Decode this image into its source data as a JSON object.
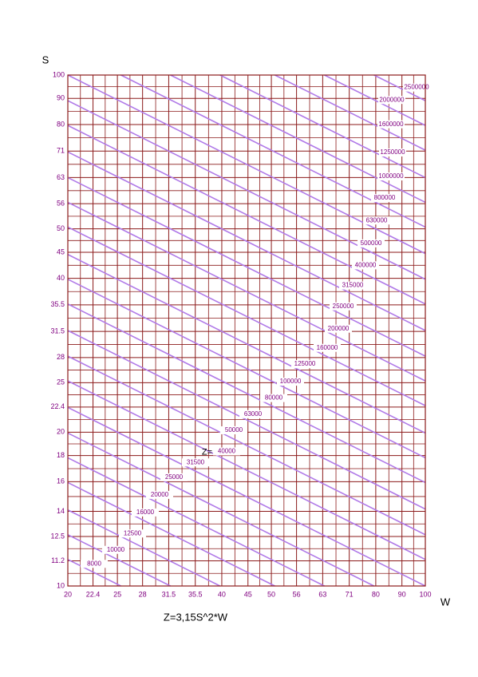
{
  "chart_data": {
    "type": "nomogram",
    "x_label": "W",
    "y_label": "S",
    "formula": "Z=3,15S^2*W",
    "z_prefix": "Z=",
    "coefficient": 3.15,
    "xlim": [
      20,
      100
    ],
    "ylim": [
      10,
      100
    ],
    "xscale": "log",
    "yscale": "log",
    "grid": true,
    "xticks": [
      20,
      22.4,
      25,
      28,
      31.5,
      35.5,
      40,
      45,
      50,
      56,
      63,
      71,
      80,
      90,
      100
    ],
    "yticks": [
      10,
      11.2,
      12.5,
      14,
      16,
      18,
      20,
      22.4,
      25,
      28,
      31.5,
      35.5,
      40,
      45,
      50,
      56,
      63,
      71,
      80,
      90,
      100
    ],
    "grid_color": "#8b1a1a",
    "line_color": "#b07ae8",
    "label_color": "#800080",
    "z_lines": [
      8000,
      10000,
      12500,
      16000,
      20000,
      25000,
      31500,
      40000,
      50000,
      63000,
      80000,
      100000,
      125000,
      160000,
      200000,
      250000,
      315000,
      400000,
      500000,
      630000,
      800000,
      1000000,
      1250000,
      1600000,
      2000000,
      2500000
    ]
  }
}
